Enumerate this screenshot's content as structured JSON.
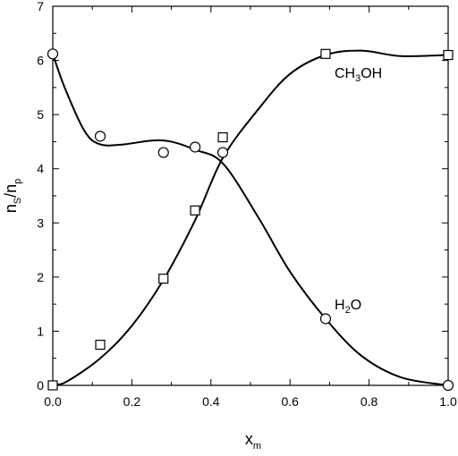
{
  "chart_data": {
    "type": "scatter",
    "xlabel": {
      "main": "x",
      "sub": "m"
    },
    "ylabel": {
      "a": "n",
      "a_sub": "S",
      "slash": "/",
      "b": "n",
      "b_sub": "p"
    },
    "xlim": [
      0.0,
      1.0
    ],
    "ylim": [
      0,
      7
    ],
    "x_ticks": [
      "0.0",
      "0.2",
      "0.4",
      "0.6",
      "0.8",
      "1.0"
    ],
    "x_tick_values": [
      0.0,
      0.2,
      0.4,
      0.6,
      0.8,
      1.0
    ],
    "y_ticks": [
      "0",
      "1",
      "2",
      "3",
      "4",
      "5",
      "6",
      "7"
    ],
    "y_tick_values": [
      0,
      1,
      2,
      3,
      4,
      5,
      6,
      7
    ],
    "grid": false,
    "series": [
      {
        "name": "CH3OH",
        "label_parts": {
          "pre": "CH",
          "sub": "3",
          "post": "OH"
        },
        "marker": "square",
        "x": [
          0.0,
          0.12,
          0.28,
          0.36,
          0.43,
          0.69,
          1.0
        ],
        "y": [
          0.0,
          0.75,
          1.97,
          3.23,
          4.58,
          6.12,
          6.1
        ],
        "curve": [
          [
            0.0,
            0.05
          ],
          [
            0.03,
            0.05
          ],
          [
            0.12,
            0.5
          ],
          [
            0.2,
            1.1
          ],
          [
            0.28,
            1.95
          ],
          [
            0.36,
            3.05
          ],
          [
            0.43,
            4.2
          ],
          [
            0.52,
            5.1
          ],
          [
            0.6,
            5.75
          ],
          [
            0.69,
            6.1
          ],
          [
            0.78,
            6.18
          ],
          [
            0.88,
            6.08
          ],
          [
            1.0,
            6.1
          ]
        ],
        "color": "#000000"
      },
      {
        "name": "H2O",
        "label_parts": {
          "pre": "H",
          "sub": "2",
          "post": "O"
        },
        "marker": "circle",
        "x": [
          0.0,
          0.12,
          0.28,
          0.36,
          0.43,
          0.69,
          1.0
        ],
        "y": [
          6.12,
          4.6,
          4.3,
          4.4,
          4.3,
          1.23,
          0.0
        ],
        "curve": [
          [
            0.0,
            6.12
          ],
          [
            0.03,
            5.5
          ],
          [
            0.08,
            4.7
          ],
          [
            0.12,
            4.45
          ],
          [
            0.18,
            4.45
          ],
          [
            0.25,
            4.52
          ],
          [
            0.3,
            4.5
          ],
          [
            0.36,
            4.35
          ],
          [
            0.43,
            4.1
          ],
          [
            0.52,
            3.1
          ],
          [
            0.6,
            2.1
          ],
          [
            0.69,
            1.23
          ],
          [
            0.78,
            0.55
          ],
          [
            0.88,
            0.15
          ],
          [
            1.0,
            0.0
          ]
        ],
        "color": "#000000"
      }
    ]
  }
}
